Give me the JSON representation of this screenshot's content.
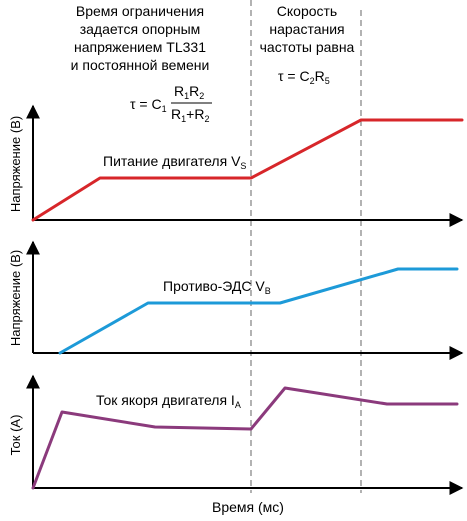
{
  "annotations": {
    "left": {
      "lines": [
        "Время ограничения",
        "задается опорным",
        "напряжением TL331",
        "и постоянной вемени"
      ]
    },
    "right": {
      "lines": [
        "Скорость",
        "нарастания",
        "частоты равна"
      ]
    },
    "formula_left": {
      "tau": "τ = C",
      "c_sub": "1",
      "num_r1": "R",
      "num_r1_sub": "1",
      "num_r2": "R",
      "num_r2_sub": "2",
      "den_r1": "R",
      "den_r1_sub": "1",
      "den_plus": "+R",
      "den_r2_sub": "2"
    },
    "formula_right": {
      "tau": "τ = C",
      "c_sub": "2",
      "r": "R",
      "r_sub": "5"
    }
  },
  "panels": {
    "top": {
      "ylabel": "Напряжение (В)",
      "curve_label": "Питание двигателя V",
      "curve_sub": "S",
      "color": "#d7262a"
    },
    "middle": {
      "ylabel": "Напряжение (В)",
      "curve_label": "Противо-ЭДС V",
      "curve_sub": "B",
      "color": "#1d9ad8"
    },
    "bottom": {
      "ylabel": "Ток (А)",
      "curve_label": "Ток якоря двигателя I",
      "curve_sub": "A",
      "color": "#8b3a7c"
    }
  },
  "xlabel": "Время (мс)"
}
